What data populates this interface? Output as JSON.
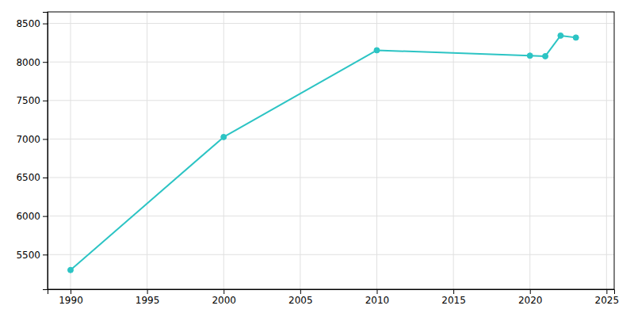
{
  "chart_data": {
    "type": "line",
    "x": [
      1990,
      2000,
      2010,
      2020,
      2021,
      2022,
      2023
    ],
    "values": [
      5300,
      7026,
      8152,
      8082,
      8075,
      8342,
      8317
    ],
    "color": "#2CC4C4",
    "marker": "circle",
    "xlim": [
      1988.5,
      2025.5
    ],
    "ylim": [
      5050,
      8650
    ],
    "xticks": [
      1990,
      1995,
      2000,
      2005,
      2010,
      2015,
      2020,
      2025
    ],
    "yticks": [
      5500,
      6000,
      6500,
      7000,
      7500,
      8000,
      8500
    ],
    "grid": true
  }
}
